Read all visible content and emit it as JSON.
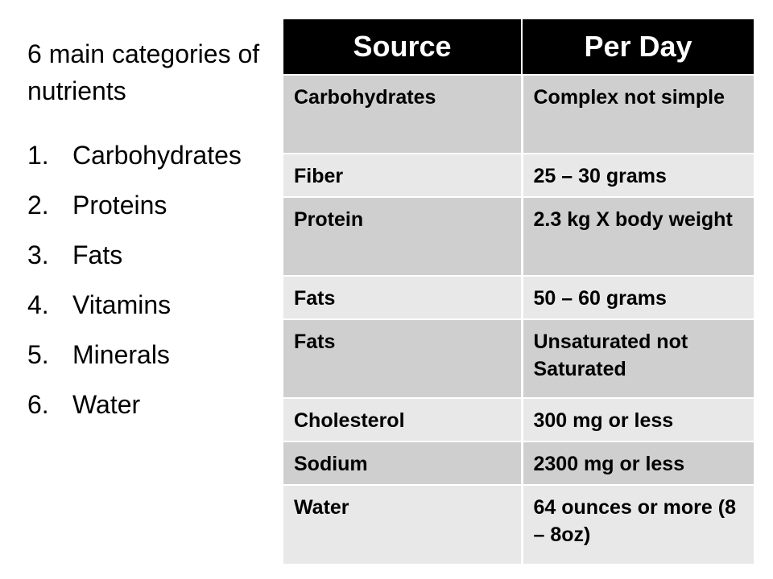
{
  "heading": "6 main categories of nutrients",
  "nutrients": [
    {
      "num": "1.",
      "label": "Carbohydrates"
    },
    {
      "num": "2.",
      "label": "Proteins"
    },
    {
      "num": "3.",
      "label": "Fats"
    },
    {
      "num": "4.",
      "label": "Vitamins"
    },
    {
      "num": "5.",
      "label": "Minerals"
    },
    {
      "num": "6.",
      "label": "Water"
    }
  ],
  "table": {
    "headers": [
      "Source",
      "Per Day"
    ],
    "rows": [
      [
        "Carbohydrates",
        "Complex not simple"
      ],
      [
        "Fiber",
        "25 – 30 grams"
      ],
      [
        "Protein",
        "2.3 kg X body weight"
      ],
      [
        "Fats",
        "50 – 60 grams"
      ],
      [
        "Fats",
        "Unsaturated not Saturated"
      ],
      [
        "Cholesterol",
        "300 mg or less"
      ],
      [
        "Sodium",
        "2300 mg or less"
      ],
      [
        "Water",
        "64 ounces or more (8 – 8oz)"
      ]
    ]
  },
  "colors": {
    "header_bg": "#000000",
    "header_text": "#ffffff",
    "row_dark": "#cfcfcf",
    "row_light": "#e8e8e8"
  }
}
